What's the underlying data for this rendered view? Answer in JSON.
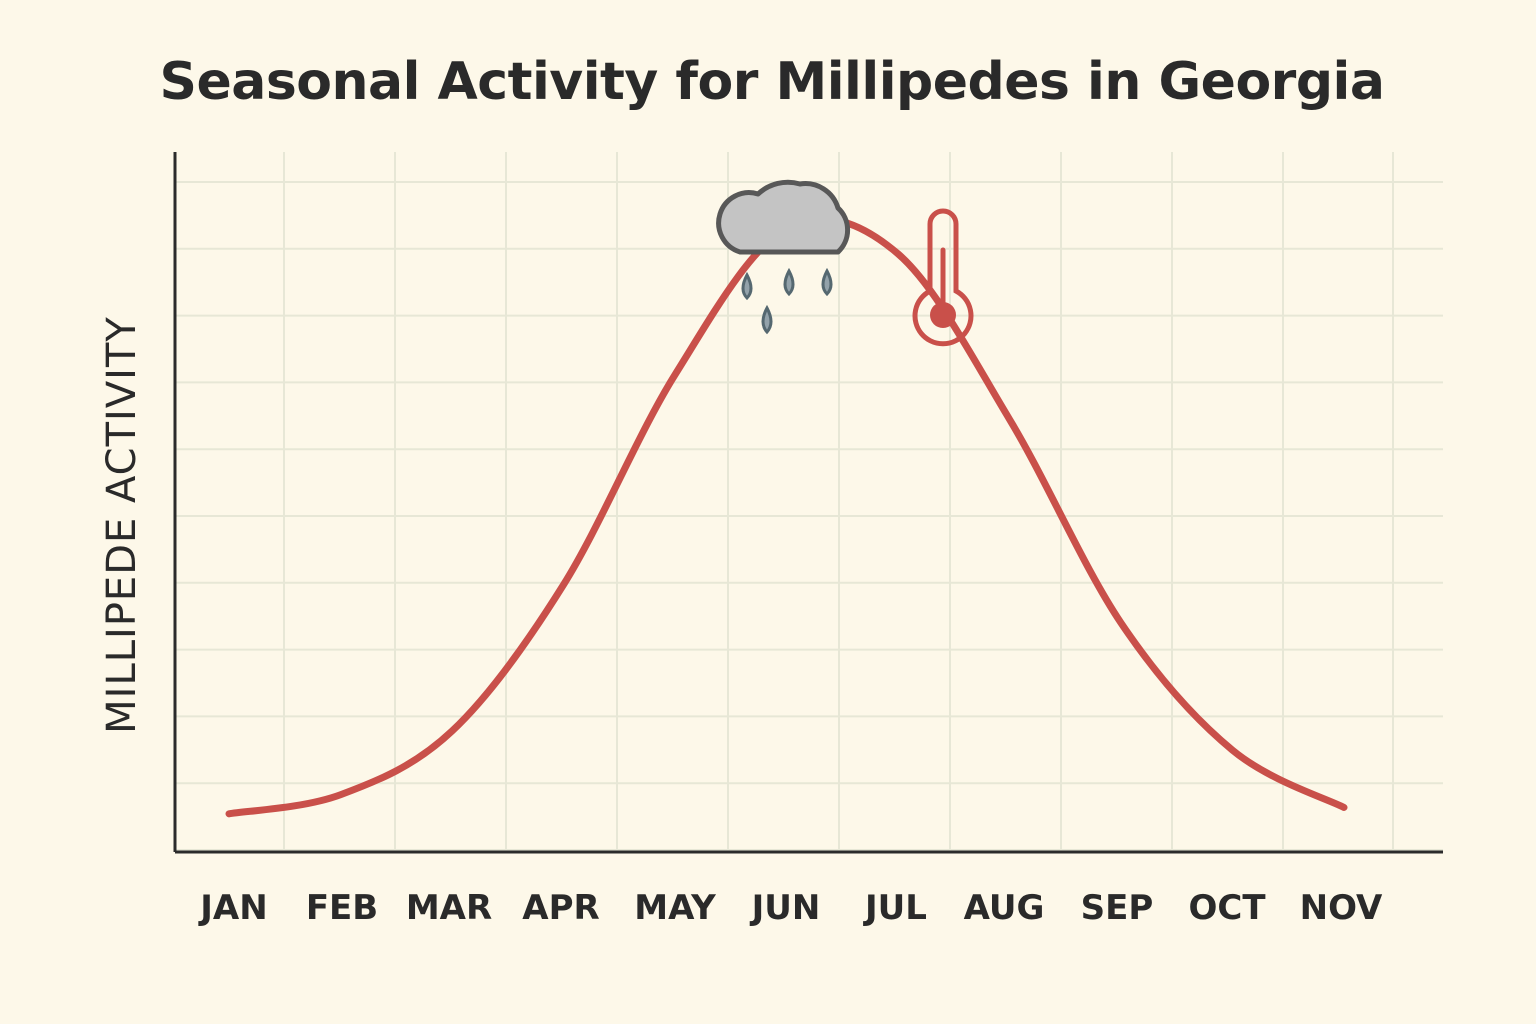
{
  "chart_data": {
    "type": "line",
    "title": "Seasonal Activity for Millipedes in Georgia",
    "xlabel": "",
    "ylabel": "MILLIPEDE ACTIVITY",
    "categories": [
      "JAN",
      "FEB",
      "MAR",
      "APR",
      "MAY",
      "JUN",
      "JUL",
      "AUG",
      "SEP",
      "OCT",
      "NOV"
    ],
    "series": [
      {
        "values": [
          0.06,
          0.09,
          0.19,
          0.42,
          0.75,
          0.98,
          0.94,
          0.68,
          0.36,
          0.16,
          0.07
        ]
      }
    ],
    "ylim": [
      0,
      1.1
    ],
    "grid": true,
    "legend": "none",
    "line_color": "#c9504a",
    "annotations": [
      {
        "icon": "rain-cloud-icon",
        "near": "JUN"
      },
      {
        "icon": "thermometer-icon",
        "near": "JUL"
      }
    ]
  }
}
